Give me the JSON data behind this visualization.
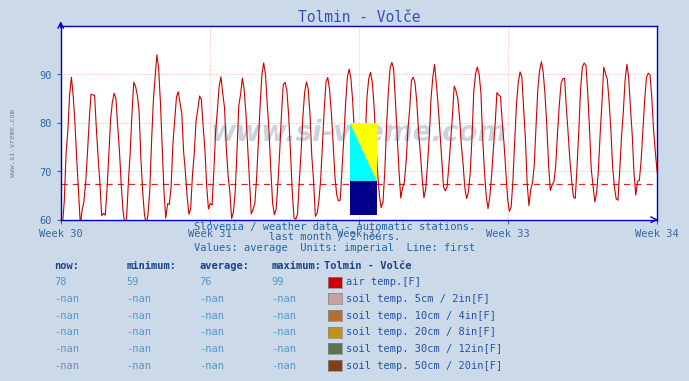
{
  "title": "Tolmin - Volče",
  "subtitle1": "Slovenia / weather data - automatic stations.",
  "subtitle2": "last month / 2 hours.",
  "subtitle3": "Values: average  Units: imperial  Line: first",
  "bg_color": "#ccd9e8",
  "plot_bg_color": "#ffffff",
  "xlim": [
    0,
    336
  ],
  "ylim": [
    60,
    100
  ],
  "yticks": [
    60,
    70,
    80,
    90
  ],
  "xtick_labels": [
    "Week 30",
    "Week 31",
    "Week 32",
    "Week 33",
    "Week 34"
  ],
  "xtick_positions": [
    0,
    84,
    168,
    252,
    336
  ],
  "line_color": "#cc0000",
  "dashed_line_y": 67.3,
  "dashed_line_color": "#cc0000",
  "watermark_color": "#1a3a6b",
  "watermark_text": "www.si-vreme.com",
  "grid_color": "#ffb0b0",
  "axis_color": "#0000cc",
  "tick_color": "#3366aa",
  "legend_title": "Tolmin - Volče",
  "legend_items": [
    {
      "label": "air temp.[F]",
      "color": "#cc0000"
    },
    {
      "label": "soil temp. 5cm / 2in[F]",
      "color": "#c8a0a0"
    },
    {
      "label": "soil temp. 10cm / 4in[F]",
      "color": "#b07030"
    },
    {
      "label": "soil temp. 20cm / 8in[F]",
      "color": "#c09020"
    },
    {
      "label": "soil temp. 30cm / 12in[F]",
      "color": "#607050"
    },
    {
      "label": "soil temp. 50cm / 20in[F]",
      "color": "#804018"
    }
  ],
  "table_headers": [
    "now:",
    "minimum:",
    "average:",
    "maximum:"
  ],
  "table_row1": [
    "78",
    "59",
    "76",
    "99"
  ],
  "table_row_nan": [
    "-nan",
    "-nan",
    "-nan",
    "-nan"
  ],
  "num_nan_rows": 5,
  "font_color": "#5599cc",
  "font_color_dark": "#2255aa",
  "font_color_bold": "#1a4488"
}
